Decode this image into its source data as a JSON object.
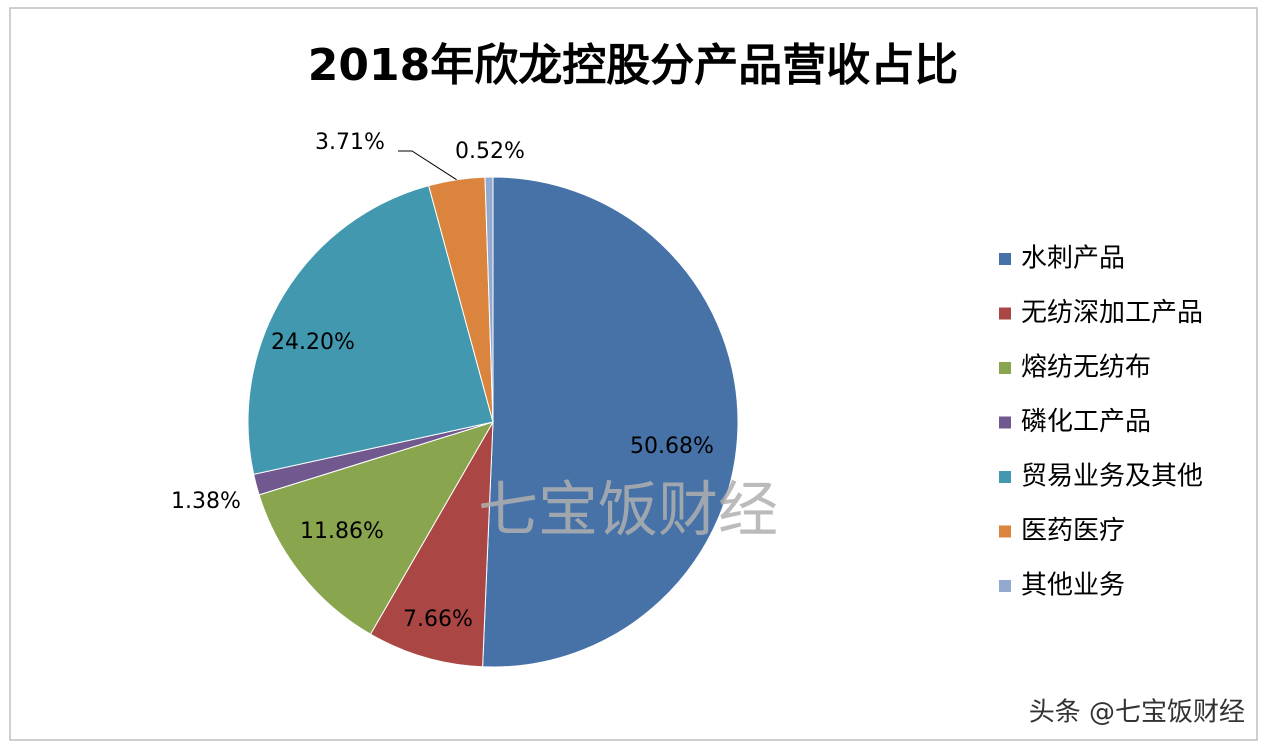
{
  "chart_data": {
    "type": "pie",
    "title": "2018年欣龙控股分产品营收占比",
    "categories": [
      "水刺产品",
      "无纺深加工产品",
      "熔纺无纺布",
      "磷化工产品",
      "贸易业务及其他",
      "医药医疗",
      "其他业务"
    ],
    "values": [
      50.68,
      7.66,
      11.86,
      1.38,
      24.2,
      3.71,
      0.52
    ],
    "value_labels": [
      "50.68%",
      "7.66%",
      "11.86%",
      "1.38%",
      "24.20%",
      "3.71%",
      "0.52%"
    ],
    "colors": [
      "#4672a8",
      "#aa4643",
      "#89a54e",
      "#71588f",
      "#4198af",
      "#db843d",
      "#93a9cf"
    ],
    "legend": "right",
    "watermark": "七宝饭财经"
  },
  "credit": "头条 @七宝饭财经"
}
